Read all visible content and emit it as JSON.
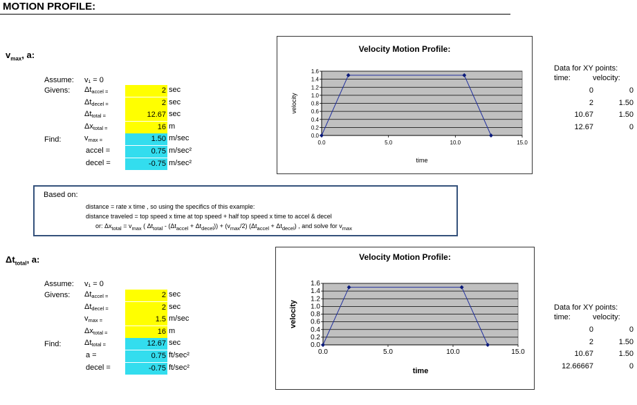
{
  "page": {
    "title": "MOTION PROFILE:"
  },
  "section1": {
    "heading_main": "v",
    "heading_sub": "max",
    "heading_rest": ", a:",
    "assume_label": "Assume:",
    "assume_value": "v₁ = 0",
    "givens_label": "Givens:",
    "find_label": "Find:",
    "rows": [
      {
        "var": "Δt",
        "sub": "accel =",
        "value": "2",
        "unit": "sec",
        "color": "#ffff00"
      },
      {
        "var": "Δt",
        "sub": "decel =",
        "value": "2",
        "unit": "sec",
        "color": "#ffff00"
      },
      {
        "var": "Δt",
        "sub": "total =",
        "value": "12.67",
        "unit": "sec",
        "color": "#ffff00"
      },
      {
        "var": "Δx",
        "sub": "total =",
        "value": "16",
        "unit": "m",
        "color": "#ffff00"
      },
      {
        "var": "v",
        "sub": "max =",
        "value": "1.50",
        "unit": "m/sec",
        "color": "#33ddee"
      },
      {
        "var": "accel =",
        "sub": "",
        "value": "0.75",
        "unit": "m/sec²",
        "color": "#33ddee"
      },
      {
        "var": "decel =",
        "sub": "",
        "value": "-0.75",
        "unit": "m/sec²",
        "color": "#33ddee"
      }
    ],
    "xy": {
      "title": "Data for XY points:",
      "col1": "time:",
      "col2": "velocity:",
      "rows": [
        [
          "0",
          "0"
        ],
        [
          "2",
          "1.50"
        ],
        [
          "10.67",
          "1.50"
        ],
        [
          "12.67",
          "0"
        ]
      ]
    }
  },
  "note": {
    "based_on": "Based on:",
    "line1": "distance = rate x time ,     so using the specifics of this example:",
    "line2": "distance traveled = top speed x time at top speed + half top speed x time to accel & decel",
    "line3": "or:    Δx",
    "line3b": "total",
    "line3c": " = v",
    "line3d": "max",
    "line3e": " ( Δt",
    "line3f": "total",
    "line3g": " - (Δt",
    "line3h": "accel",
    "line3i": " + Δt",
    "line3j": "decel",
    "line3k": "))  +  (v",
    "line3l": "max",
    "line3m": "/2) (Δt",
    "line3n": "accel",
    "line3o": " + Δt",
    "line3p": "decel",
    "line3q": ") , and solve for v",
    "line3r": "max"
  },
  "section2": {
    "heading_main": "Δt",
    "heading_sub": "total",
    "heading_rest": ", a:",
    "assume_label": "Assume:",
    "assume_value": "v₁ = 0",
    "givens_label": "Givens:",
    "find_label": "Find:",
    "rows": [
      {
        "var": "Δt",
        "sub": "accel =",
        "value": "2",
        "unit": "sec",
        "color": "#ffff00"
      },
      {
        "var": "Δt",
        "sub": "decel =",
        "value": "2",
        "unit": "sec",
        "color": "#ffff00"
      },
      {
        "var": "v",
        "sub": "max =",
        "value": "1.5",
        "unit": "m/sec",
        "color": "#ffff00"
      },
      {
        "var": "Δx",
        "sub": "total =",
        "value": "16",
        "unit": "m",
        "color": "#ffff00"
      },
      {
        "var": "Δt",
        "sub": "total =",
        "value": "12.67",
        "unit": "sec",
        "color": "#33ddee"
      },
      {
        "var": "a =",
        "sub": "",
        "value": "0.75",
        "unit": "ft/sec²",
        "color": "#33ddee"
      },
      {
        "var": "decel =",
        "sub": "",
        "value": "-0.75",
        "unit": "ft/sec²",
        "color": "#33ddee"
      }
    ],
    "xy": {
      "title": "Data for XY points:",
      "col1": "time:",
      "col2": "velocity:",
      "rows": [
        [
          "0",
          "0"
        ],
        [
          "2",
          "1.50"
        ],
        [
          "10.67",
          "1.50"
        ],
        [
          "12.66667",
          "0"
        ]
      ]
    }
  },
  "chart_data": [
    {
      "type": "scatter",
      "title": "Velocity Motion Profile:",
      "xlabel": "time",
      "ylabel": "velocity",
      "x": [
        0,
        2,
        10.67,
        12.67
      ],
      "y": [
        0,
        1.5,
        1.5,
        0
      ],
      "xlim": [
        0,
        15
      ],
      "ylim": [
        0,
        1.6
      ],
      "xticks": [
        "0.0",
        "5.0",
        "10.0",
        "15.0"
      ],
      "yticks": [
        "0.0",
        "0.2",
        "0.4",
        "0.6",
        "0.8",
        "1.0",
        "1.2",
        "1.4",
        "1.6"
      ],
      "grid": true,
      "plot_bg": "#c0c0c0",
      "line_color": "#1f2e9e"
    },
    {
      "type": "scatter",
      "title": "Velocity Motion Profile:",
      "xlabel": "time",
      "ylabel": "velocity",
      "x": [
        0,
        2,
        10.67,
        12.66667
      ],
      "y": [
        0,
        1.5,
        1.5,
        0
      ],
      "xlim": [
        0,
        15
      ],
      "ylim": [
        0,
        1.6
      ],
      "xticks": [
        "0.0",
        "5.0",
        "10.0",
        "15.0"
      ],
      "yticks": [
        "0.0",
        "0.2",
        "0.4",
        "0.6",
        "0.8",
        "1.0",
        "1.2",
        "1.4",
        "1.6"
      ],
      "grid": true,
      "plot_bg": "#c0c0c0",
      "line_color": "#1f2e9e"
    }
  ]
}
